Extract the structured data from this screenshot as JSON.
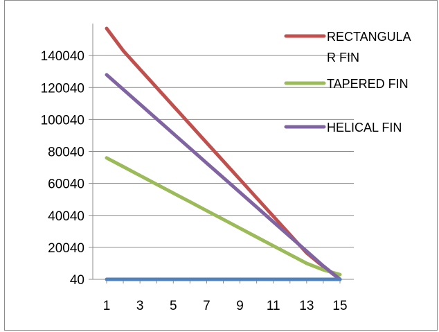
{
  "chart_data": {
    "type": "line",
    "title": "",
    "xlabel": "",
    "ylabel": "",
    "x": [
      1,
      2,
      3,
      4,
      5,
      6,
      7,
      8,
      9,
      10,
      11,
      12,
      13,
      14,
      15
    ],
    "x_ticks": [
      "1",
      "3",
      "5",
      "7",
      "9",
      "11",
      "13",
      "15"
    ],
    "y_ticks": [
      "40",
      "20040",
      "40040",
      "60040",
      "80040",
      "100040",
      "120040",
      "140040"
    ],
    "ylim": [
      40,
      160040
    ],
    "grid": "horizontal",
    "legend_position": "right",
    "series": [
      {
        "name": "RECTANGULA R FIN",
        "legend_lines": [
          "RECTANGULA",
          "R FIN"
        ],
        "color": "#c0504d",
        "values": [
          157000,
          143000,
          131500,
          120000,
          108500,
          97000,
          85500,
          74000,
          62500,
          51000,
          39500,
          28000,
          16500,
          8000,
          40
        ]
      },
      {
        "name": "TAPERED FIN",
        "legend_lines": [
          "TAPERED FIN"
        ],
        "color": "#9bbb59",
        "values": [
          76000,
          70500,
          65000,
          59500,
          54000,
          48500,
          43000,
          37500,
          32000,
          26500,
          21000,
          15500,
          10000,
          6000,
          3000
        ]
      },
      {
        "name": "HELICAL FIN",
        "legend_lines": [
          "HELICAL FIN"
        ],
        "color": "#8064a2",
        "values": [
          128000,
          118800,
          109600,
          100400,
          91200,
          82000,
          72800,
          63600,
          54400,
          45200,
          36000,
          26800,
          17600,
          8400,
          40
        ]
      },
      {
        "name": "",
        "legend_lines": [],
        "color": "#4f81bd",
        "values": [
          40,
          40,
          40,
          40,
          40,
          40,
          40,
          40,
          40,
          40,
          40,
          40,
          40,
          40,
          40
        ]
      }
    ]
  }
}
